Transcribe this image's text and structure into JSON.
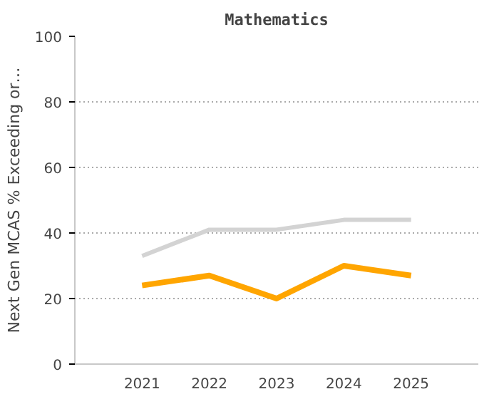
{
  "chart_data": {
    "type": "line",
    "title": "Mathematics",
    "ylabel": "Next Gen MCAS % Exceeding or…",
    "categories": [
      "2021",
      "2022",
      "2023",
      "2024",
      "2025"
    ],
    "series": [
      {
        "color": "#d3d3d3",
        "values": [
          33,
          41,
          41,
          44,
          44
        ]
      },
      {
        "color": "#ffa500",
        "values": [
          24,
          27,
          20,
          30,
          27
        ]
      }
    ],
    "ylim": [
      0,
      100
    ],
    "yticks": [
      0,
      20,
      40,
      60,
      80,
      100
    ],
    "grid": "y",
    "marker": "none",
    "line_style": "solid"
  }
}
